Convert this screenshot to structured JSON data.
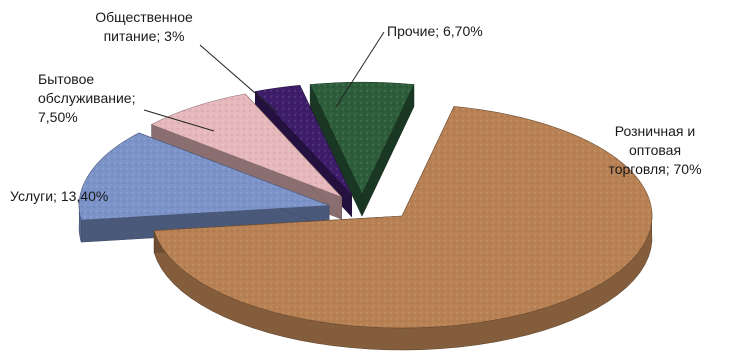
{
  "chart_data": {
    "type": "pie",
    "title": "",
    "style": "3d-exploded",
    "legend": "none",
    "slices": [
      {
        "name": "Розничная и оптовая торговля",
        "value": 70,
        "label_lines": [
          "Розничная и",
          "оптовая",
          "торговля; 70%"
        ],
        "color": "#b88153"
      },
      {
        "name": "Услуги",
        "value": 13.4,
        "label_lines": [
          "Услуги; 13,40%"
        ],
        "color": "#7b93c9"
      },
      {
        "name": "Бытовое обслуживание",
        "value": 7.5,
        "label_lines": [
          "Бытовое",
          "обслуживание;",
          "7,50%"
        ],
        "color": "#e6b8bb"
      },
      {
        "name": "Общественное питание",
        "value": 3,
        "label_lines": [
          "Общественное",
          "питание; 3%"
        ],
        "color": "#3d1d6a"
      },
      {
        "name": "Прочие",
        "value": 6.7,
        "label_lines": [
          "Прочие; 6,70%"
        ],
        "color": "#2c5c3a"
      }
    ]
  }
}
